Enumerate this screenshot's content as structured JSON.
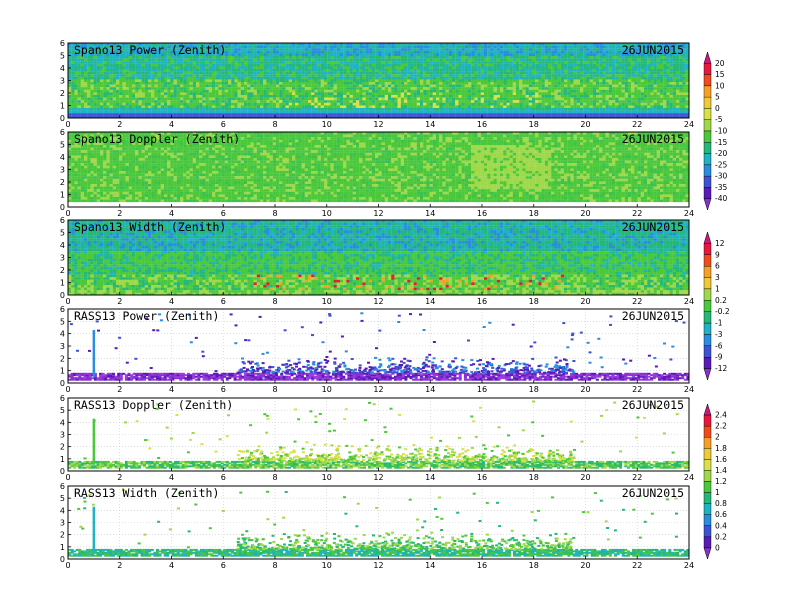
{
  "figure": {
    "date": "26JUN2015",
    "x_ticks": [
      "0",
      "2",
      "4",
      "6",
      "8",
      "10",
      "12",
      "14",
      "16",
      "18",
      "20",
      "22",
      "24"
    ],
    "y_ticks": [
      "0",
      "1",
      "2",
      "3",
      "4",
      "5",
      "6"
    ],
    "colorbars": [
      {
        "id": "cb-spano-power-doppler",
        "labels": [
          "20",
          "15",
          "10",
          "5",
          "0",
          "-5",
          "-10",
          "-15",
          "-20",
          "-25",
          "-30",
          "-35",
          "-40"
        ],
        "colors": [
          "#d2157a",
          "#e8173c",
          "#f04a1e",
          "#f6a02a",
          "#eec93c",
          "#d8e04a",
          "#9fd84a",
          "#4cc83c",
          "#26b879",
          "#1fb3c3",
          "#2b8de0",
          "#3f52d6",
          "#5a1bb8",
          "#8b2ed2"
        ]
      },
      {
        "id": "cb-spano-width",
        "labels": [
          "12",
          "9",
          "6",
          "3",
          "1",
          "0.2",
          "-0.2",
          "-1",
          "-3",
          "-6",
          "-9",
          "-12"
        ],
        "colors": [
          "#d2157a",
          "#e8173c",
          "#f04a1e",
          "#f6a02a",
          "#eec93c",
          "#9fd84a",
          "#4cc83c",
          "#26b879",
          "#1fb3c3",
          "#2b8de0",
          "#3f52d6",
          "#5a1bb8",
          "#8b2ed2"
        ]
      },
      {
        "id": "cb-rass",
        "labels": [
          "2.4",
          "2.2",
          "2",
          "1.8",
          "1.6",
          "1.4",
          "1.2",
          "1",
          "0.8",
          "0.6",
          "0.4",
          "0.2",
          "0"
        ],
        "colors": [
          "#d2157a",
          "#e8173c",
          "#f04a1e",
          "#f6a02a",
          "#eec93c",
          "#d8e04a",
          "#9fd84a",
          "#4cc83c",
          "#26b879",
          "#1fb3c3",
          "#2b8de0",
          "#3f52d6",
          "#5a1bb8",
          "#8b2ed2"
        ]
      }
    ]
  },
  "chart_data": [
    {
      "type": "heatmap",
      "title": "Spano13 Power (Zenith)",
      "date": "26JUN2015",
      "xlim": [
        0,
        24
      ],
      "ylim": [
        0,
        6
      ],
      "field": "spano_power",
      "colorbar": "cb-spano-power-doppler"
    },
    {
      "type": "heatmap",
      "title": "Spano13 Doppler (Zenith)",
      "date": "26JUN2015",
      "xlim": [
        0,
        24
      ],
      "ylim": [
        0,
        6
      ],
      "field": "spano_doppler",
      "colorbar": "cb-spano-power-doppler"
    },
    {
      "type": "heatmap",
      "title": "Spano13 Width (Zenith)",
      "date": "26JUN2015",
      "xlim": [
        0,
        24
      ],
      "ylim": [
        0,
        6
      ],
      "field": "spano_width",
      "colorbar": "cb-spano-width"
    },
    {
      "type": "heatmap",
      "title": "RASS13 Power (Zenith)",
      "date": "26JUN2015",
      "xlim": [
        0,
        24
      ],
      "ylim": [
        0,
        6
      ],
      "field": "rass_power",
      "colorbar": "cb-spano-width"
    },
    {
      "type": "heatmap",
      "title": "RASS13 Doppler (Zenith)",
      "date": "26JUN2015",
      "xlim": [
        0,
        24
      ],
      "ylim": [
        0,
        6
      ],
      "field": "rass_doppler",
      "colorbar": "cb-rass"
    },
    {
      "type": "heatmap",
      "title": "RASS13 Width (Zenith)",
      "date": "26JUN2015",
      "xlim": [
        0,
        24
      ],
      "ylim": [
        0,
        6
      ],
      "field": "rass_width",
      "colorbar": "cb-rass"
    }
  ]
}
